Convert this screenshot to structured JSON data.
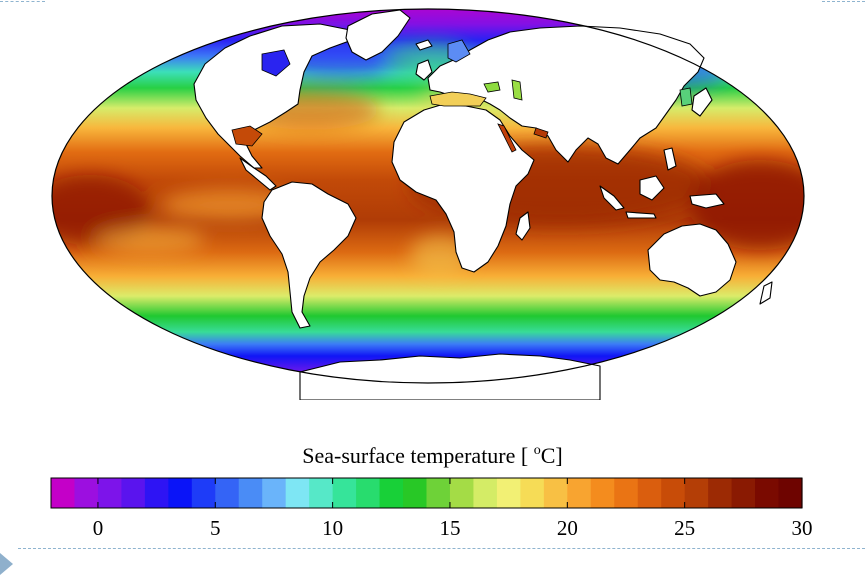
{
  "figure": {
    "colorbar_title_prefix": "Sea-surface temperature [ ",
    "colorbar_title_unit_sup": "o",
    "colorbar_title_unit_suffix": "C]"
  },
  "colorbar": {
    "min": -2,
    "max": 30,
    "step": 1,
    "tick_values": [
      0,
      5,
      10,
      15,
      20,
      25,
      30
    ],
    "tick_labels": [
      "0",
      "5",
      "10",
      "15",
      "20",
      "25",
      "30"
    ],
    "colors": [
      "#c400c8",
      "#9c0fe0",
      "#7d14ea",
      "#5a14ee",
      "#2e14f4",
      "#0a14f8",
      "#1e3cf8",
      "#3464f6",
      "#4a8cf6",
      "#6ab4fa",
      "#7ee6f4",
      "#56e8c8",
      "#36e49a",
      "#28dc6e",
      "#18d038",
      "#28c826",
      "#6ed238",
      "#a4dc46",
      "#d4ec66",
      "#f2f074",
      "#f6dc56",
      "#f8c044",
      "#f8a430",
      "#f48c1e",
      "#ea7414",
      "#da5e0e",
      "#c84c08",
      "#b43e06",
      "#9c2a04",
      "#8a1a02",
      "#7a0a00",
      "#6e0400"
    ]
  },
  "map": {
    "projection": "Mollweide",
    "land_color": "#ffffff",
    "coastline_color": "#000000"
  }
}
